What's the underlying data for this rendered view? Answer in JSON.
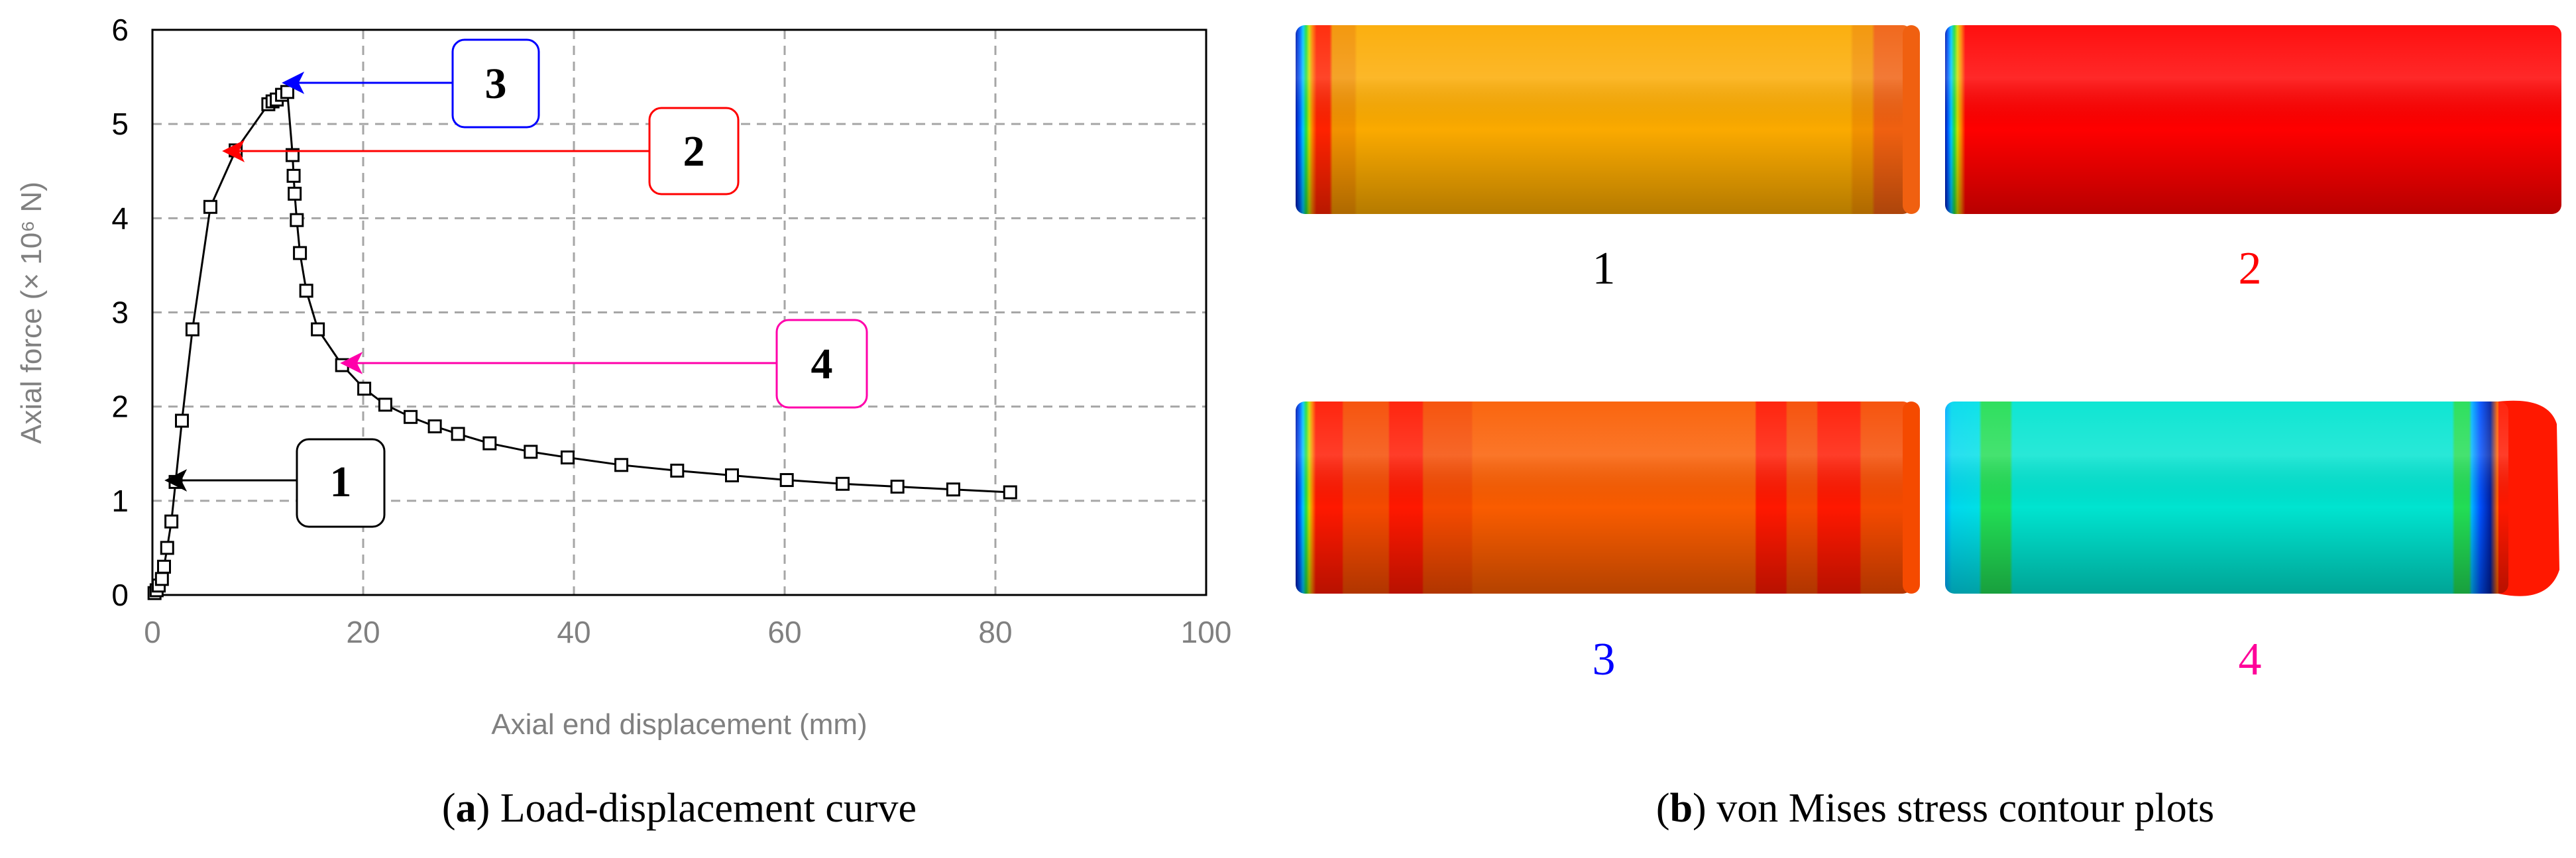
{
  "chart_data": {
    "type": "line",
    "title": "",
    "xlabel": "Axial end displacement (mm)",
    "ylabel": "Axial force (× 10⁶ N)",
    "xlim": [
      0,
      100
    ],
    "ylim": [
      0,
      6
    ],
    "xticks": [
      0,
      20,
      40,
      60,
      80,
      100
    ],
    "yticks": [
      0,
      1,
      2,
      3,
      4,
      5,
      6
    ],
    "grid": true,
    "series": [
      {
        "name": "Load-displacement curve",
        "marker": "square",
        "color": "#000000",
        "x": [
          0.2,
          0.4,
          0.6,
          0.9,
          1.1,
          1.4,
          1.8,
          2.2,
          2.8,
          3.8,
          5.5,
          7.9,
          11.0,
          11.4,
          11.8,
          12.3,
          12.8,
          13.3,
          13.4,
          13.5,
          13.7,
          14.0,
          14.6,
          15.7,
          18.0,
          20.1,
          22.1,
          24.5,
          26.8,
          29.0,
          32.0,
          35.9,
          39.4,
          44.5,
          49.8,
          55.0,
          60.2,
          65.5,
          70.7,
          76.0,
          81.4
        ],
        "y": [
          0.02,
          0.05,
          0.1,
          0.17,
          0.3,
          0.5,
          0.78,
          1.2,
          1.85,
          2.82,
          4.12,
          4.72,
          5.21,
          5.24,
          5.26,
          5.31,
          5.34,
          4.67,
          4.45,
          4.26,
          3.98,
          3.63,
          3.23,
          2.82,
          2.44,
          2.19,
          2.02,
          1.89,
          1.79,
          1.71,
          1.61,
          1.52,
          1.46,
          1.38,
          1.32,
          1.27,
          1.22,
          1.18,
          1.15,
          1.12,
          1.09
        ]
      }
    ],
    "annotations": [
      {
        "label": "1",
        "x": 2.2,
        "y": 1.2,
        "color": "#000000"
      },
      {
        "label": "2",
        "x": 7.9,
        "y": 4.72,
        "color": "#ff0000"
      },
      {
        "label": "3",
        "x": 12.8,
        "y": 5.34,
        "color": "#0000ff"
      },
      {
        "label": "4",
        "x": 18.0,
        "y": 2.44,
        "color": "#ff00aa"
      }
    ]
  },
  "captions": {
    "a_letter": "a",
    "a_text": "Load-displacement curve",
    "b_letter": "b",
    "b_text": "von Mises stress contour plots"
  },
  "contours": [
    {
      "label": "1",
      "label_color": "#000000"
    },
    {
      "label": "2",
      "label_color": "#ff0000"
    },
    {
      "label": "3",
      "label_color": "#0000ff"
    },
    {
      "label": "4",
      "label_color": "#ff0099"
    }
  ]
}
